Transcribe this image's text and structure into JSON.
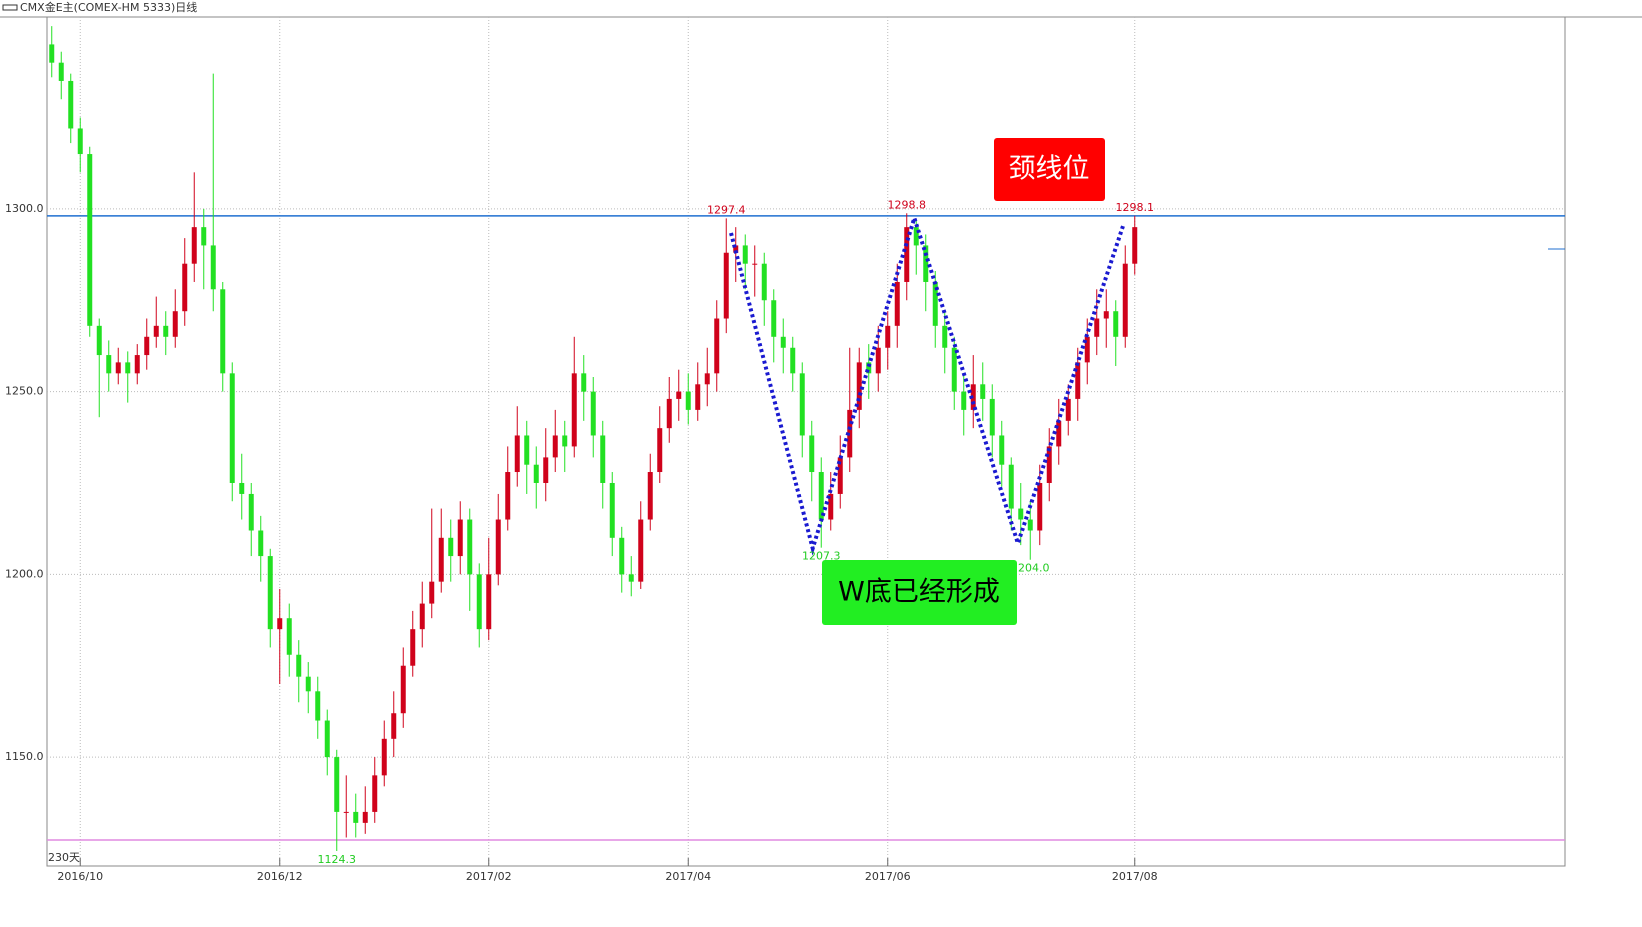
{
  "header": {
    "title": "CMX金E主(COMEX-HM 5333)日线"
  },
  "chart_data": {
    "type": "candlestick",
    "period_label": "230天",
    "up_color": "#d0021b",
    "down_color": "#22e022",
    "open": [
      1345,
      1340,
      1335,
      1322,
      1315,
      1268,
      1260,
      1255,
      1258,
      1255,
      1260,
      1265,
      1268,
      1265,
      1272,
      1285,
      1295,
      1290,
      1278,
      1255,
      1225,
      1222,
      1212,
      1205,
      1185,
      1188,
      1178,
      1172,
      1168,
      1160,
      1150,
      1135,
      1135,
      1132,
      1135,
      1145,
      1155,
      1162,
      1175,
      1185,
      1192,
      1198,
      1210,
      1205,
      1215,
      1200,
      1185,
      1200,
      1215,
      1228,
      1238,
      1230,
      1225,
      1232,
      1238,
      1235,
      1255,
      1250,
      1238,
      1225,
      1210,
      1200,
      1198,
      1215,
      1228,
      1240,
      1248,
      1250,
      1245,
      1252,
      1255,
      1270,
      1288,
      1290,
      1285,
      1285,
      1275,
      1265,
      1262,
      1255,
      1238,
      1228,
      1215,
      1222,
      1232,
      1245,
      1258,
      1255,
      1262,
      1268,
      1280,
      1295,
      1290,
      1280,
      1268,
      1262,
      1250,
      1245,
      1252,
      1248,
      1238,
      1230,
      1218,
      1215,
      1212,
      1225,
      1235,
      1242,
      1248,
      1258,
      1265,
      1270,
      1272,
      1265,
      1285
    ],
    "high": [
      1350,
      1343,
      1337,
      1325,
      1317,
      1270,
      1264,
      1262,
      1261,
      1263,
      1270,
      1276,
      1272,
      1278,
      1292,
      1310,
      1300,
      1337,
      1280,
      1258,
      1233,
      1225,
      1216,
      1207,
      1196,
      1192,
      1182,
      1176,
      1172,
      1163,
      1152,
      1145,
      1140,
      1142,
      1150,
      1160,
      1168,
      1180,
      1190,
      1198,
      1218,
      1218,
      1215,
      1220,
      1218,
      1203,
      1210,
      1222,
      1235,
      1246,
      1242,
      1235,
      1240,
      1245,
      1242,
      1265,
      1260,
      1254,
      1242,
      1228,
      1213,
      1205,
      1220,
      1233,
      1246,
      1254,
      1256,
      1255,
      1258,
      1262,
      1275,
      1297.4,
      1295,
      1293,
      1290,
      1288,
      1278,
      1270,
      1265,
      1258,
      1242,
      1232,
      1228,
      1238,
      1262,
      1262,
      1263,
      1268,
      1272,
      1285,
      1298.8,
      1297,
      1293,
      1283,
      1272,
      1265,
      1255,
      1260,
      1258,
      1252,
      1242,
      1232,
      1225,
      1220,
      1230,
      1240,
      1248,
      1252,
      1262,
      1270,
      1278,
      1278,
      1275,
      1290,
      1298.1
    ],
    "low": [
      1336,
      1330,
      1318,
      1310,
      1265,
      1243,
      1250,
      1252,
      1247,
      1252,
      1256,
      1262,
      1260,
      1262,
      1268,
      1280,
      1278,
      1272,
      1250,
      1220,
      1215,
      1205,
      1198,
      1180,
      1170,
      1172,
      1165,
      1162,
      1155,
      1145,
      1124.3,
      1128,
      1128,
      1129,
      1132,
      1142,
      1150,
      1158,
      1172,
      1180,
      1188,
      1195,
      1198,
      1200,
      1190,
      1180,
      1182,
      1197,
      1212,
      1224,
      1222,
      1218,
      1220,
      1228,
      1228,
      1232,
      1242,
      1232,
      1218,
      1205,
      1195,
      1194,
      1196,
      1212,
      1225,
      1236,
      1242,
      1241,
      1242,
      1246,
      1250,
      1266,
      1280,
      1278,
      1276,
      1268,
      1258,
      1255,
      1250,
      1232,
      1220,
      1207.3,
      1212,
      1218,
      1228,
      1240,
      1248,
      1250,
      1256,
      1262,
      1275,
      1282,
      1272,
      1262,
      1255,
      1245,
      1238,
      1240,
      1242,
      1232,
      1224,
      1212,
      1208,
      1204,
      1208,
      1220,
      1230,
      1238,
      1242,
      1252,
      1260,
      1262,
      1257,
      1262,
      1282
    ],
    "close": [
      1340,
      1335,
      1322,
      1315,
      1268,
      1260,
      1255,
      1258,
      1255,
      1260,
      1265,
      1268,
      1265,
      1272,
      1285,
      1295,
      1290,
      1278,
      1255,
      1225,
      1222,
      1212,
      1205,
      1185,
      1188,
      1178,
      1172,
      1168,
      1160,
      1150,
      1135,
      1135,
      1132,
      1135,
      1145,
      1155,
      1162,
      1175,
      1185,
      1192,
      1198,
      1210,
      1205,
      1215,
      1200,
      1185,
      1200,
      1215,
      1228,
      1238,
      1230,
      1225,
      1232,
      1238,
      1235,
      1255,
      1250,
      1238,
      1225,
      1210,
      1200,
      1198,
      1215,
      1228,
      1240,
      1248,
      1250,
      1245,
      1252,
      1255,
      1270,
      1288,
      1290,
      1285,
      1285,
      1275,
      1265,
      1262,
      1255,
      1238,
      1228,
      1215,
      1222,
      1232,
      1245,
      1258,
      1255,
      1262,
      1268,
      1280,
      1295,
      1290,
      1280,
      1268,
      1262,
      1250,
      1245,
      1252,
      1248,
      1238,
      1230,
      1218,
      1215,
      1212,
      1225,
      1235,
      1242,
      1248,
      1258,
      1265,
      1270,
      1272,
      1265,
      1285,
      1295
    ],
    "extreme_labels": [
      1297.4,
      1298.8,
      1298.1,
      1124.3,
      1207.3,
      {
        "value": 1204,
        "label": "1204.0"
      }
    ],
    "high_label_color": "#d0021b",
    "low_label_color": "#22cc22",
    "ylim": [
      1120.2,
      1352.5
    ],
    "yticks": [
      {
        "value": 1150,
        "label": "1150.0"
      },
      {
        "value": 1200,
        "label": "1200.0"
      },
      {
        "value": 1250,
        "label": "1250.0"
      },
      {
        "value": 1300,
        "label": "1300.0"
      }
    ],
    "xlim": [
      0,
      115
    ],
    "xticks": [
      {
        "value": 3,
        "label": "2016/10"
      },
      {
        "value": 24,
        "label": "2016/12"
      },
      {
        "value": 46,
        "label": "2017/02"
      },
      {
        "value": 67,
        "label": "2017/04"
      },
      {
        "value": 88,
        "label": "2017/06"
      },
      {
        "value": 114,
        "label": "2017/08"
      }
    ],
    "grid": true,
    "hlines": [
      {
        "value": 1298.1,
        "color": "#1f6fd0"
      },
      {
        "value": 1127.3,
        "color": "#e08ae0"
      }
    ],
    "pattern_line": {
      "x": [
        71.5,
        80.1,
        90.8,
        101.7,
        112.8
      ],
      "y": [
        1293.4,
        1207.1,
        1297.5,
        1208.5,
        1295.6
      ],
      "color": "#1a1ad0"
    },
    "annotations": [
      {
        "text": "颈线位",
        "color": "#ff0000"
      },
      {
        "text": "W底已经形成",
        "color": "#22ee22"
      }
    ]
  }
}
